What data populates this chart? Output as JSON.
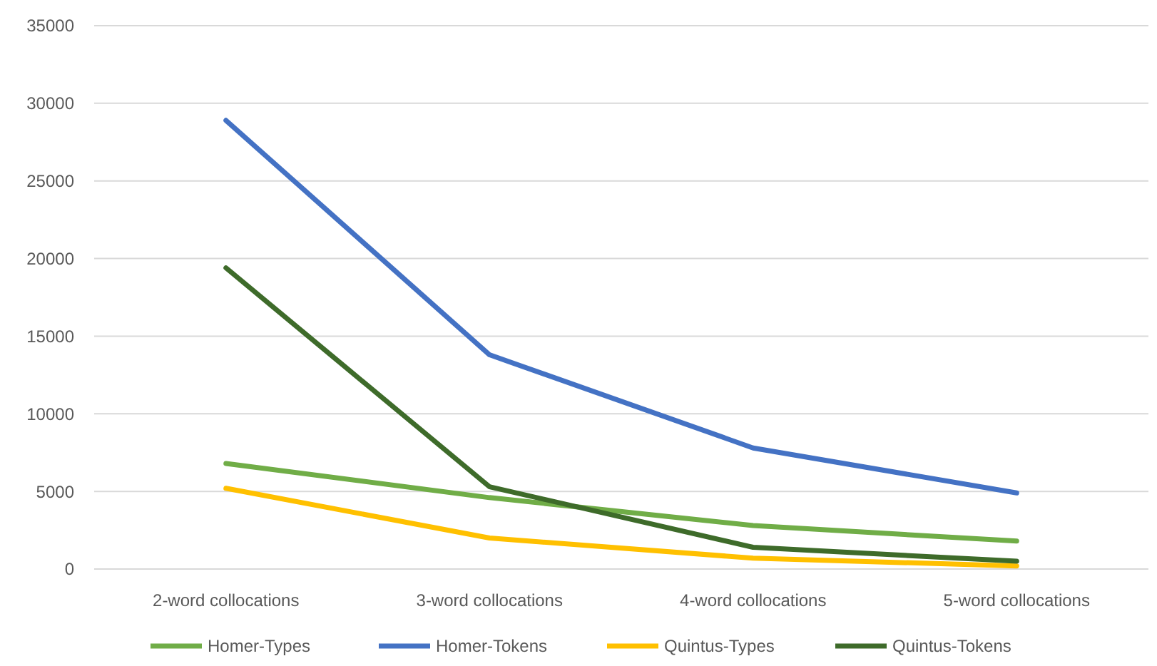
{
  "chart_data": {
    "type": "line",
    "categories": [
      "2-word collocations",
      "3-word collocations",
      "4-word collocations",
      "5-word collocations"
    ],
    "series": [
      {
        "name": "Homer-Types",
        "color": "#70ad47",
        "values": [
          6800,
          4600,
          2800,
          1800
        ]
      },
      {
        "name": "Homer-Tokens",
        "color": "#4472c4",
        "values": [
          28900,
          13800,
          7800,
          4900
        ]
      },
      {
        "name": "Quintus-Types",
        "color": "#ffc000",
        "values": [
          5200,
          2000,
          700,
          200
        ]
      },
      {
        "name": "Quintus-Tokens",
        "color": "#3e6b2a",
        "values": [
          19400,
          5300,
          1400,
          500
        ]
      }
    ],
    "ylim": [
      0,
      35000
    ],
    "yticks": [
      0,
      5000,
      10000,
      15000,
      20000,
      25000,
      30000,
      35000
    ],
    "grid": "y",
    "legend": "bottom",
    "marker": "none",
    "line_style": "solid"
  }
}
